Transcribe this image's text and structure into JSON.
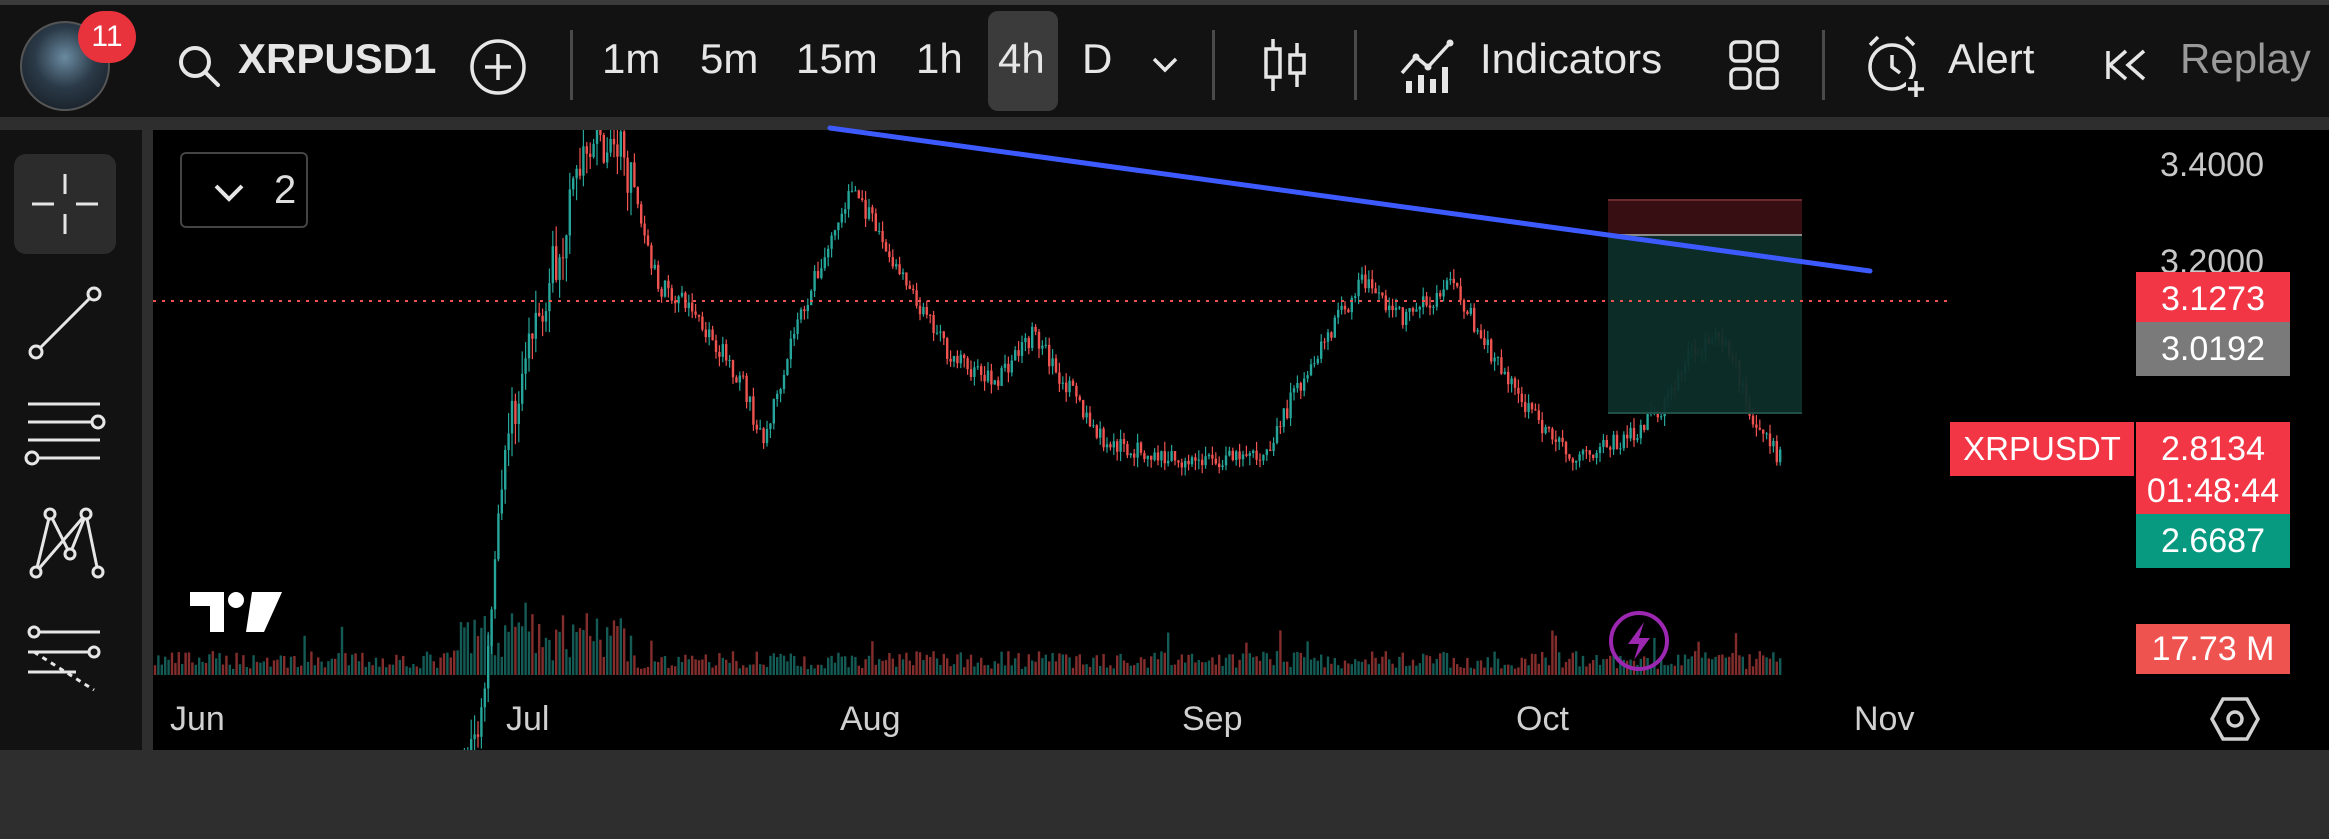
{
  "toolbar": {
    "notification_count": "11",
    "symbol": "XRPUSD1",
    "timeframes": [
      "1m",
      "5m",
      "15m",
      "1h",
      "4h",
      "D"
    ],
    "active_timeframe": "4h",
    "indicators_label": "Indicators",
    "alert_label": "Alert",
    "replay_label": "Replay"
  },
  "chart": {
    "layer_count": "2",
    "price_axis": {
      "top_label": "3.4000",
      "second_label": "3.2000"
    },
    "price_tags": {
      "stop": "3.1273",
      "entry": "3.0192",
      "current": "2.8134",
      "countdown": "01:48:44",
      "target": "2.6687",
      "volume": "17.73 M"
    },
    "symbol_tag": "XRPUSDT",
    "x_axis": [
      "Jun",
      "Jul",
      "Aug",
      "Sep",
      "Oct",
      "Nov"
    ]
  },
  "colors": {
    "up": "#26a69a",
    "down": "#ef5350",
    "trendline": "#3d5afe",
    "stop_zone": "#3a1014",
    "profit_zone": "#0d2e2a",
    "price_tag_red": "#f23645",
    "price_tag_grey": "#7a7a7a",
    "price_tag_green": "#089981"
  },
  "icons": {
    "search": "search-icon",
    "add": "plus-circle-icon",
    "chevron": "chevron-down-icon",
    "candles": "candlestick-icon",
    "indicators": "indicators-icon",
    "layouts": "grid-icon",
    "alert": "alarm-clock-icon",
    "replay": "rewind-icon",
    "crosshair": "crosshair-icon",
    "trend": "trend-line-icon",
    "fib": "fib-retracement-icon",
    "patterns": "pattern-icon",
    "prediction": "prediction-icon",
    "settings": "settings-hex-icon",
    "lightning": "lightning-icon",
    "logo": "tv-logo-icon"
  }
}
